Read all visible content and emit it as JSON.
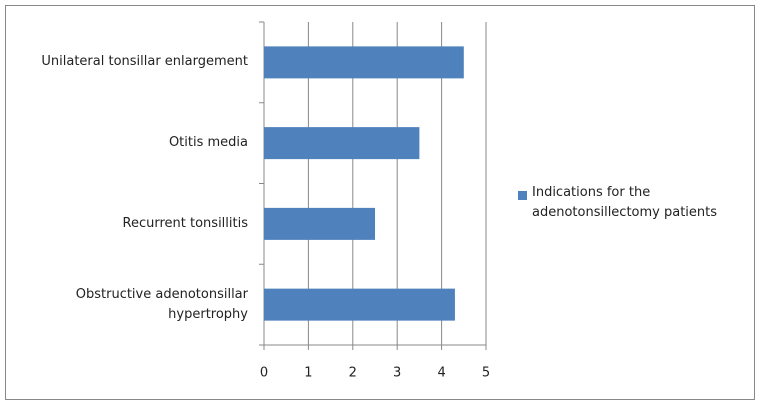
{
  "chart_data": {
    "type": "bar",
    "orientation": "horizontal",
    "categories": [
      "Unilateral tonsillar enlargement",
      "Otitis media",
      "Recurrent tonsillitis",
      "Obstructive adenotonsillar hypertrophy"
    ],
    "series": [
      {
        "name": "Indications for the adenotonsillectomy patients",
        "color": "#4f81bd",
        "values": [
          4.5,
          3.5,
          2.5,
          4.3
        ]
      }
    ],
    "xlim": [
      0,
      5
    ],
    "xticks": [
      0,
      1,
      2,
      3,
      4,
      5
    ],
    "grid": true,
    "legend": "right"
  }
}
